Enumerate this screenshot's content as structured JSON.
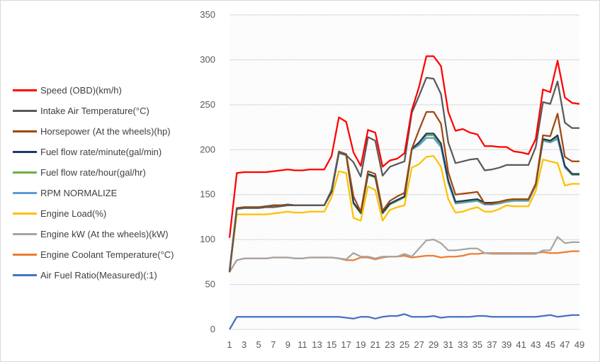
{
  "chart_data": {
    "type": "line",
    "title": "",
    "xlabel": "",
    "ylabel": "",
    "ylim": [
      0,
      350
    ],
    "yticks": [
      0,
      50,
      100,
      150,
      200,
      250,
      300,
      350
    ],
    "xtick_labels": [
      "1",
      "3",
      "5",
      "7",
      "9",
      "11",
      "13",
      "15",
      "17",
      "19",
      "21",
      "23",
      "25",
      "27",
      "29",
      "31",
      "33",
      "35",
      "37",
      "39",
      "41",
      "43",
      "45",
      "47",
      "49"
    ],
    "x": [
      1,
      2,
      3,
      4,
      5,
      6,
      7,
      8,
      9,
      10,
      11,
      12,
      13,
      14,
      15,
      16,
      17,
      18,
      19,
      20,
      21,
      22,
      23,
      24,
      25,
      26,
      27,
      28,
      29,
      30,
      31,
      32,
      33,
      34,
      35,
      36,
      37,
      38,
      39,
      40,
      41,
      42,
      43,
      44,
      45,
      46,
      47,
      48,
      49
    ],
    "grid": "horizontal",
    "legend_position": "left",
    "series": [
      {
        "name": "Speed (OBD)(km/h)",
        "color": "#ff0000",
        "values": [
          102,
          174,
          175,
          175,
          175,
          175,
          176,
          177,
          178,
          177,
          177,
          178,
          178,
          178,
          193,
          236,
          231,
          197,
          182,
          222,
          219,
          181,
          188,
          190,
          196,
          244,
          270,
          304,
          304,
          293,
          242,
          221,
          223,
          219,
          217,
          204,
          204,
          203,
          203,
          198,
          197,
          195,
          212,
          267,
          264,
          299,
          258,
          252,
          251
        ]
      },
      {
        "name": "Intake Air Temperature(°C)",
        "color": "#595959",
        "values": [
          65,
          134,
          135,
          135,
          135,
          136,
          136,
          137,
          138,
          138,
          138,
          138,
          138,
          138,
          155,
          197,
          194,
          186,
          170,
          214,
          210,
          171,
          181,
          184,
          187,
          241,
          260,
          280,
          279,
          262,
          208,
          185,
          187,
          189,
          190,
          177,
          178,
          180,
          183,
          183,
          183,
          183,
          203,
          253,
          251,
          276,
          230,
          224,
          224
        ]
      },
      {
        "name": "Horsepower (At the wheels)(hp)",
        "color": "#9e480e",
        "values": [
          64,
          135,
          136,
          136,
          136,
          137,
          138,
          138,
          139,
          138,
          138,
          138,
          138,
          138,
          155,
          198,
          195,
          148,
          131,
          176,
          173,
          132,
          143,
          148,
          152,
          201,
          222,
          242,
          242,
          229,
          175,
          150,
          151,
          152,
          153,
          140,
          140,
          142,
          144,
          145,
          145,
          145,
          162,
          216,
          215,
          240,
          192,
          187,
          187
        ]
      },
      {
        "name": "Fuel flow rate/minute(gal/min)",
        "color": "#1f3864",
        "values": [
          64,
          135,
          136,
          136,
          136,
          137,
          138,
          138,
          139,
          138,
          138,
          138,
          138,
          138,
          153,
          197,
          195,
          141,
          130,
          173,
          170,
          130,
          140,
          144,
          148,
          201,
          208,
          218,
          218,
          207,
          166,
          142,
          143,
          144,
          145,
          141,
          141,
          142,
          144,
          145,
          145,
          145,
          162,
          212,
          210,
          216,
          182,
          173,
          173
        ]
      },
      {
        "name": "Fuel flow rate/hour(gal/hr)",
        "color": "#70ad47",
        "values": [
          64,
          135,
          136,
          136,
          136,
          137,
          138,
          138,
          139,
          138,
          138,
          138,
          138,
          138,
          153,
          196,
          194,
          140,
          129,
          172,
          169,
          129,
          139,
          143,
          147,
          200,
          207,
          216,
          216,
          205,
          165,
          141,
          142,
          143,
          144,
          140,
          140,
          141,
          143,
          144,
          144,
          144,
          161,
          211,
          209,
          214,
          181,
          172,
          172
        ]
      },
      {
        "name": "RPM NORMALIZE",
        "color": "#5b9bd5",
        "values": [
          64,
          135,
          136,
          136,
          136,
          137,
          138,
          138,
          139,
          138,
          138,
          138,
          138,
          138,
          153,
          196,
          194,
          140,
          129,
          172,
          169,
          129,
          139,
          143,
          147,
          200,
          205,
          213,
          213,
          203,
          163,
          140,
          141,
          142,
          143,
          139,
          139,
          140,
          142,
          143,
          143,
          143,
          160,
          210,
          208,
          212,
          180,
          172,
          172
        ]
      },
      {
        "name": "Engine Load(%)",
        "color": "#ffc000",
        "values": [
          63,
          128,
          128,
          128,
          128,
          128,
          129,
          130,
          131,
          130,
          130,
          131,
          131,
          131,
          147,
          176,
          174,
          124,
          121,
          159,
          155,
          121,
          133,
          136,
          138,
          180,
          184,
          192,
          193,
          181,
          145,
          130,
          131,
          134,
          136,
          131,
          131,
          134,
          138,
          137,
          137,
          137,
          154,
          189,
          187,
          185,
          160,
          162,
          162
        ]
      },
      {
        "name": "Engine kW (At the wheels)(kW)",
        "color": "#a5a5a5",
        "values": [
          64,
          77,
          79,
          79,
          79,
          79,
          80,
          80,
          80,
          79,
          79,
          80,
          80,
          80,
          80,
          79,
          78,
          85,
          81,
          81,
          79,
          81,
          81,
          81,
          84,
          81,
          90,
          99,
          100,
          96,
          88,
          88,
          89,
          90,
          90,
          85,
          84,
          84,
          84,
          84,
          84,
          84,
          84,
          88,
          88,
          103,
          96,
          97,
          97
        ]
      },
      {
        "name": "Engine Coolant Temperature(°C)",
        "color": "#ed7d31",
        "values": [
          64,
          77,
          79,
          79,
          79,
          79,
          80,
          80,
          80,
          79,
          79,
          80,
          80,
          80,
          80,
          79,
          77,
          77,
          80,
          80,
          78,
          80,
          81,
          81,
          82,
          80,
          81,
          82,
          82,
          80,
          81,
          81,
          82,
          84,
          84,
          85,
          85,
          85,
          85,
          85,
          85,
          85,
          85,
          86,
          85,
          85,
          86,
          87,
          87
        ]
      },
      {
        "name": "Air Fuel Ratio(Measured)(:1)",
        "color": "#4472c4",
        "values": [
          0,
          14,
          14,
          14,
          14,
          14,
          14,
          14,
          14,
          14,
          14,
          14,
          14,
          14,
          14,
          14,
          13,
          12,
          14,
          14,
          12,
          14,
          15,
          15,
          17,
          14,
          14,
          14,
          15,
          13,
          14,
          14,
          14,
          14,
          15,
          15,
          14,
          14,
          14,
          14,
          14,
          14,
          14,
          15,
          16,
          14,
          15,
          16,
          16
        ]
      }
    ]
  }
}
